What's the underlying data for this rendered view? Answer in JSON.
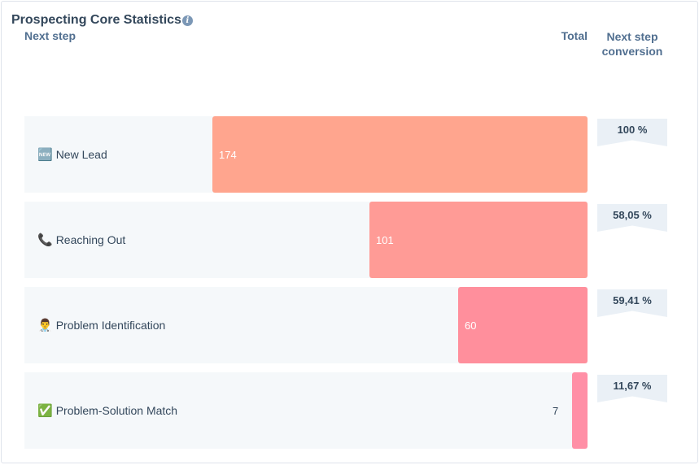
{
  "header": {
    "title": "Prospecting Core Statistics",
    "col_step": "Next step",
    "col_total": "Total",
    "col_conversion_line1": "Next step",
    "col_conversion_line2": "conversion"
  },
  "colors": {
    "stage_1": "#ffa58e",
    "stage_2": "#ff9b96",
    "stage_3": "#ff8f9c",
    "stage_4": "#ff8fa6"
  },
  "chart_data": {
    "type": "bar",
    "orientation": "horizontal",
    "categories": [
      "New Lead",
      "Reaching Out",
      "Problem Identification",
      "Problem-Solution Match"
    ],
    "values": [
      174,
      101,
      60,
      7
    ],
    "conversion": [
      "100 %",
      "58,05 %",
      "59,41 %",
      "11,67 %"
    ],
    "icons": [
      "new-badge-icon",
      "telephone-icon",
      "health-worker-icon",
      "check-mark-icon"
    ],
    "xlim": [
      0,
      174
    ]
  }
}
